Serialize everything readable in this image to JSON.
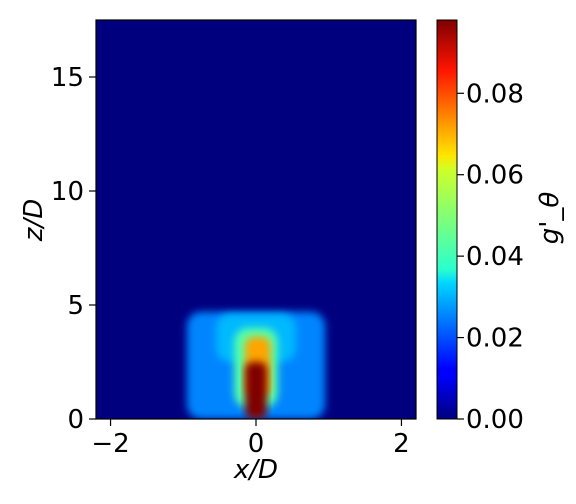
{
  "chart_data": {
    "type": "heatmap",
    "title": "",
    "xlabel": "x/D",
    "ylabel": "z/D",
    "colorbar_label": "g'_θ",
    "colormap": "jet",
    "xlim": [
      -2.2,
      2.2
    ],
    "ylim": [
      0,
      17.5
    ],
    "clim": [
      0,
      0.098
    ],
    "x_ticks": [
      -2,
      0,
      2
    ],
    "x_tick_labels": [
      "−2",
      "0",
      "2"
    ],
    "y_ticks": [
      0,
      5,
      10,
      15
    ],
    "y_tick_labels": [
      "0",
      "5",
      "10",
      "15"
    ],
    "colorbar_ticks": [
      0.0,
      0.02,
      0.04,
      0.06,
      0.08
    ],
    "colorbar_tick_labels": [
      "0.00",
      "0.02",
      "0.04",
      "0.06",
      "0.08"
    ],
    "background_value": 0.0,
    "regions": [
      {
        "name": "outer-plume",
        "x": [
          -0.95,
          0.95
        ],
        "z": [
          0.0,
          4.7
        ],
        "value": 0.025
      },
      {
        "name": "upper-plume",
        "x": [
          -0.55,
          0.55
        ],
        "z": [
          2.5,
          4.6
        ],
        "value": 0.03
      },
      {
        "name": "plume-core",
        "x": [
          -0.3,
          0.3
        ],
        "z": [
          0.5,
          4.0
        ],
        "value": 0.045
      },
      {
        "name": "inner-core",
        "x": [
          -0.15,
          0.2
        ],
        "z": [
          1.0,
          3.6
        ],
        "value": 0.07
      },
      {
        "name": "base-column",
        "x": [
          -0.15,
          0.15
        ],
        "z": [
          0.0,
          2.5
        ],
        "value": 0.098
      }
    ]
  }
}
